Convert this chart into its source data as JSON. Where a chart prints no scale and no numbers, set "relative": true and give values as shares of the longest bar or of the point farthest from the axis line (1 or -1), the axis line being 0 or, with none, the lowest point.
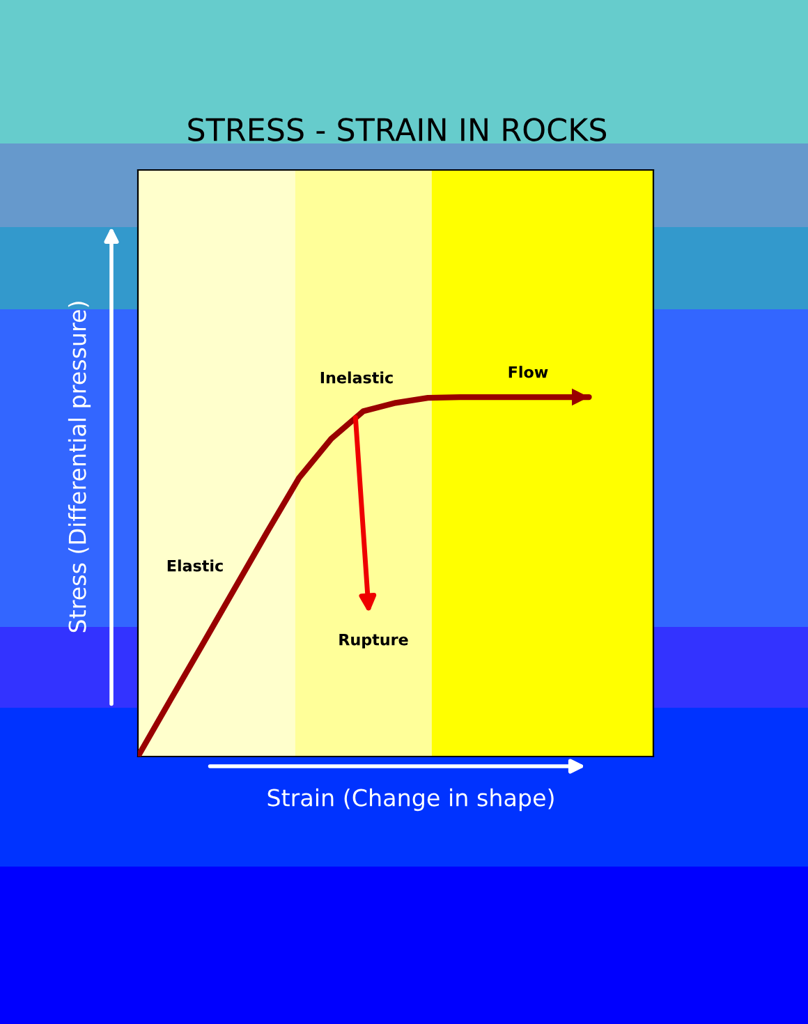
{
  "chart_data": {
    "type": "line",
    "title": "STRESS - STRAIN IN ROCKS",
    "xlabel": "Strain (Change in shape)",
    "ylabel": "Stress (Differential pressure)",
    "relative": true,
    "marker": "none",
    "line_style": "solid",
    "categories": [
      null,
      null,
      null,
      null,
      null,
      null,
      null,
      null,
      null,
      null,
      null,
      null,
      null,
      null,
      null,
      null,
      null
    ],
    "series": [
      {
        "color": "#990000",
        "values": [
          0,
          0.156,
          0.311,
          0.467,
          0.623,
          0.775,
          0.884,
          0.961,
          0.984,
          0.998,
          1.0,
          1.0,
          1.0,
          1.0,
          1.0,
          null,
          null
        ]
      }
    ],
    "annotations": [
      "Elastic",
      "Inelastic",
      "Flow",
      "Rupture"
    ]
  }
}
